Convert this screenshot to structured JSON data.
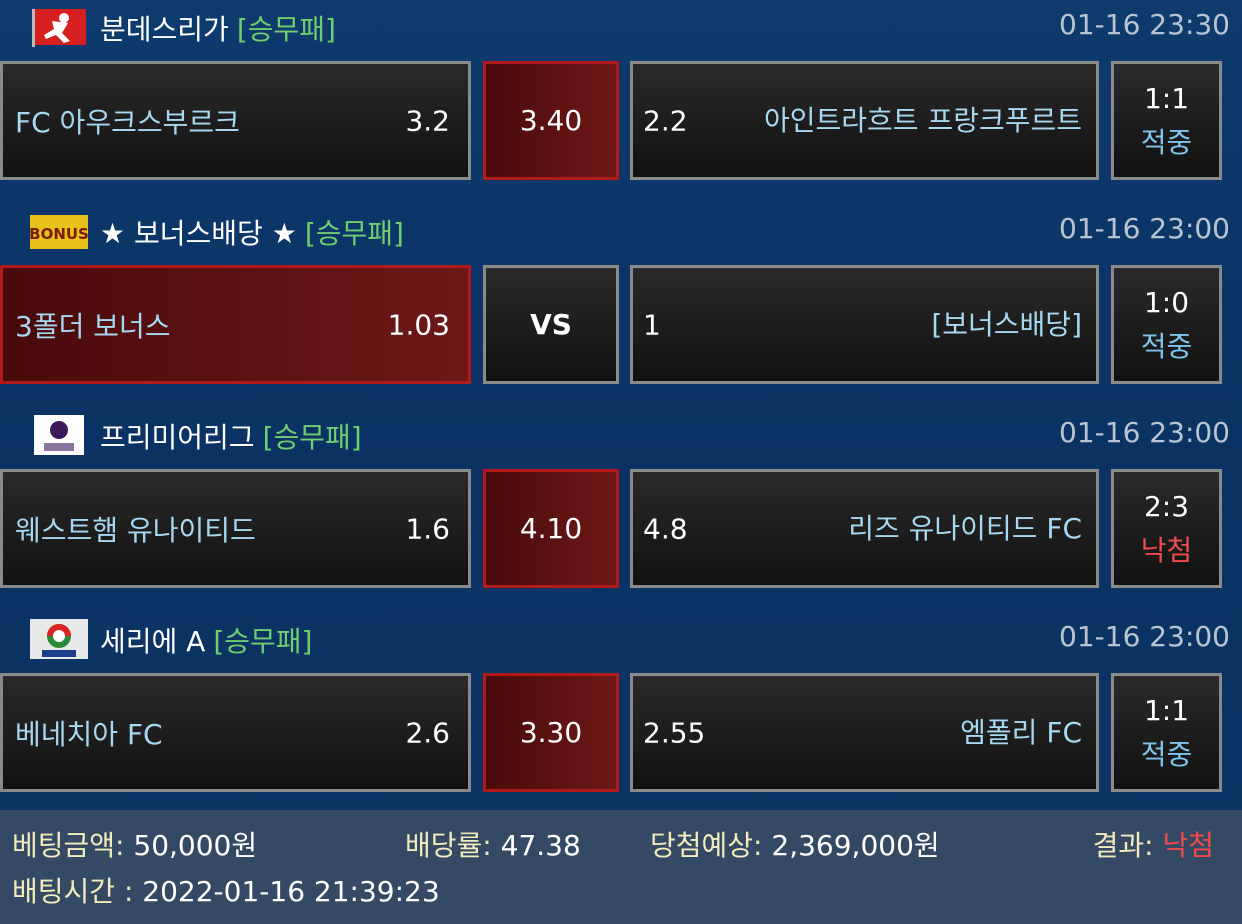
{
  "matches": [
    {
      "league": "분데스리가",
      "type": "[승무패]",
      "time": "01-16 23:30",
      "logo": "bundesliga-logo",
      "home": "FC 아우크스부르크",
      "home_odd": "3.2",
      "draw": "3.40",
      "away_odd": "2.2",
      "away": "아인트라흐트 프랑크푸르트",
      "score": "1:1",
      "result": "적중",
      "selected": "draw"
    },
    {
      "league": "★ 보너스배당 ★",
      "type": "[승무패]",
      "time": "01-16 23:00",
      "logo": "bonus-logo",
      "logo_text": "BONUS",
      "home": "3폴더 보너스",
      "home_odd": "1.03",
      "draw": "VS",
      "away_odd": "1",
      "away": "[보너스배당]",
      "score": "1:0",
      "result": "적중",
      "selected": "home"
    },
    {
      "league": "프리미어리그",
      "type": "[승무패]",
      "time": "01-16 23:00",
      "logo": "premier-league-logo",
      "home": "웨스트햄 유나이티드",
      "home_odd": "1.6",
      "draw": "4.10",
      "away_odd": "4.8",
      "away": "리즈 유나이티드 FC",
      "score": "2:3",
      "result": "낙첨",
      "selected": "draw"
    },
    {
      "league": "세리에 A",
      "type": "[승무패]",
      "time": "01-16 23:00",
      "logo": "serie-a-logo",
      "home": "베네치아 FC",
      "home_odd": "2.6",
      "draw": "3.30",
      "away_odd": "2.55",
      "away": "엠폴리 FC",
      "score": "1:1",
      "result": "적중",
      "selected": "draw"
    }
  ],
  "footer": {
    "bet_amount_label": "베팅금액:",
    "bet_amount": "50,000원",
    "odds_label": "배당률:",
    "odds": "47.38",
    "expected_label": "당첨예상:",
    "expected": "2,369,000원",
    "result_label": "결과:",
    "result": "낙첨",
    "time_label": "배팅시간 :",
    "time": "2022-01-16 21:39:23"
  },
  "colors": {
    "hit": "#7fc4ec",
    "miss": "#ef4b4b",
    "selected": "#b01a1a",
    "type": "#6fcf6f"
  }
}
